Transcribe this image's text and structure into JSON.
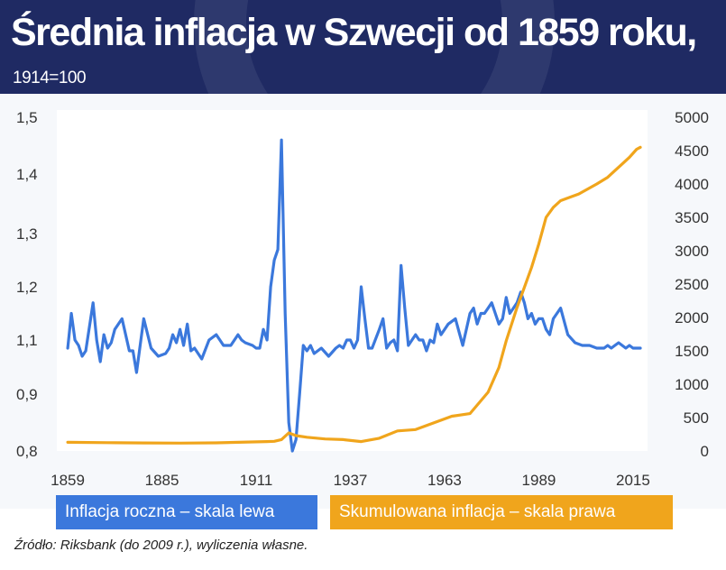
{
  "header": {
    "title": "Średnia inflacja w Szwecji od 1859 roku,",
    "subtitle": "1914=100"
  },
  "legend": {
    "left_series": "Inflacja roczna – skala lewa",
    "right_series": "Skumulowana inflacja – skala prawa"
  },
  "source": "Źródło: Riksbank (do 2009 r.), wyliczenia własne.",
  "colors": {
    "header_bg": "#1f2a63",
    "left_series": "#3b78dc",
    "right_series": "#f0a51c"
  },
  "chart_data": {
    "type": "line",
    "title": "Średnia inflacja w Szwecji od 1859 roku, 1914=100",
    "x_ticks": [
      1859,
      1885,
      1911,
      1937,
      1963,
      1989,
      2015
    ],
    "xlim": [
      1856,
      2019
    ],
    "y_left": {
      "label": "Inflacja roczna – skala lewa",
      "ticks": [
        {
          "value": 0.8,
          "label": "0,8"
        },
        {
          "value": 0.9,
          "label": "0,9"
        },
        {
          "value": 1.1,
          "label": "1,1"
        },
        {
          "value": 1.2,
          "label": "1,2"
        },
        {
          "value": 1.3,
          "label": "1,3"
        },
        {
          "value": 1.4,
          "label": "1,4"
        },
        {
          "value": 1.5,
          "label": "1,5"
        }
      ]
    },
    "y_right": {
      "label": "Skumulowana inflacja – skala prawa",
      "ylim": [
        0,
        5000
      ],
      "ticks": [
        0,
        500,
        1000,
        1500,
        2000,
        2500,
        3000,
        3500,
        4000,
        4500,
        5000
      ]
    },
    "series": [
      {
        "name": "Inflacja roczna – skala lewa",
        "axis": "left",
        "color": "#3b78dc",
        "x": [
          1859,
          1860,
          1861,
          1862,
          1863,
          1864,
          1866,
          1867,
          1868,
          1869,
          1870,
          1871,
          1872,
          1874,
          1876,
          1877,
          1878,
          1879,
          1880,
          1882,
          1884,
          1886,
          1887,
          1888,
          1889,
          1890,
          1891,
          1892,
          1893,
          1894,
          1896,
          1898,
          1900,
          1901,
          1902,
          1904,
          1906,
          1907,
          1908,
          1910,
          1911,
          1912,
          1913,
          1914,
          1915,
          1916,
          1917,
          1918,
          1919,
          1920,
          1921,
          1922,
          1923,
          1924,
          1925,
          1926,
          1927,
          1929,
          1931,
          1933,
          1934,
          1935,
          1936,
          1937,
          1938,
          1939,
          1940,
          1941,
          1942,
          1943,
          1945,
          1946,
          1947,
          1948,
          1949,
          1950,
          1951,
          1952,
          1953,
          1954,
          1955,
          1956,
          1957,
          1958,
          1959,
          1960,
          1961,
          1962,
          1964,
          1966,
          1968,
          1970,
          1971,
          1972,
          1973,
          1974,
          1975,
          1976,
          1977,
          1978,
          1979,
          1980,
          1981,
          1982,
          1983,
          1984,
          1985,
          1986,
          1987,
          1988,
          1989,
          1990,
          1991,
          1992,
          1993,
          1995,
          1997,
          1999,
          2001,
          2003,
          2005,
          2007,
          2008,
          2009,
          2010,
          2011,
          2012,
          2013,
          2014,
          2015,
          2016,
          2017
        ],
        "values": [
          1.07,
          1.15,
          1.1,
          1.08,
          1.04,
          1.06,
          1.17,
          1.1,
          1.02,
          1.11,
          1.07,
          1.09,
          1.12,
          1.14,
          1.06,
          1.06,
          0.98,
          1.08,
          1.14,
          1.07,
          1.04,
          1.05,
          1.07,
          1.11,
          1.09,
          1.12,
          1.08,
          1.13,
          1.06,
          1.07,
          1.03,
          1.1,
          1.11,
          1.1,
          1.08,
          1.08,
          1.11,
          1.1,
          1.09,
          1.08,
          1.07,
          1.07,
          1.12,
          1.1,
          1.2,
          1.25,
          1.27,
          1.46,
          1.15,
          0.85,
          0.8,
          0.82,
          0.9,
          1.08,
          1.06,
          1.08,
          1.05,
          1.07,
          1.04,
          1.07,
          1.08,
          1.07,
          1.1,
          1.1,
          1.07,
          1.1,
          1.2,
          1.14,
          1.07,
          1.07,
          1.12,
          1.14,
          1.07,
          1.09,
          1.1,
          1.06,
          1.24,
          1.16,
          1.08,
          1.1,
          1.11,
          1.1,
          1.1,
          1.06,
          1.1,
          1.09,
          1.13,
          1.11,
          1.13,
          1.14,
          1.08,
          1.15,
          1.16,
          1.13,
          1.15,
          1.15,
          1.16,
          1.17,
          1.15,
          1.13,
          1.14,
          1.18,
          1.15,
          1.16,
          1.17,
          1.19,
          1.17,
          1.14,
          1.15,
          1.13,
          1.14,
          1.14,
          1.12,
          1.11,
          1.14,
          1.16,
          1.11,
          1.09,
          1.08,
          1.08,
          1.07,
          1.07,
          1.08,
          1.07,
          1.08,
          1.09,
          1.08,
          1.07,
          1.08,
          1.07,
          1.07,
          1.07
        ]
      },
      {
        "name": "Skumulowana inflacja – skala prawa",
        "axis": "right",
        "color": "#f0a51c",
        "x": [
          1859,
          1870,
          1880,
          1890,
          1900,
          1910,
          1914,
          1916,
          1918,
          1920,
          1922,
          1925,
          1930,
          1935,
          1940,
          1945,
          1950,
          1955,
          1960,
          1965,
          1970,
          1975,
          1978,
          1980,
          1983,
          1985,
          1987,
          1989,
          1991,
          1993,
          1995,
          2000,
          2005,
          2008,
          2010,
          2012,
          2014,
          2016,
          2017
        ],
        "values": [
          130,
          125,
          120,
          118,
          122,
          135,
          140,
          145,
          170,
          270,
          230,
          205,
          180,
          170,
          140,
          190,
          300,
          320,
          420,
          520,
          560,
          880,
          1250,
          1650,
          2150,
          2450,
          2750,
          3100,
          3500,
          3650,
          3750,
          3850,
          4000,
          4100,
          4200,
          4300,
          4400,
          4520,
          4550
        ]
      }
    ]
  }
}
